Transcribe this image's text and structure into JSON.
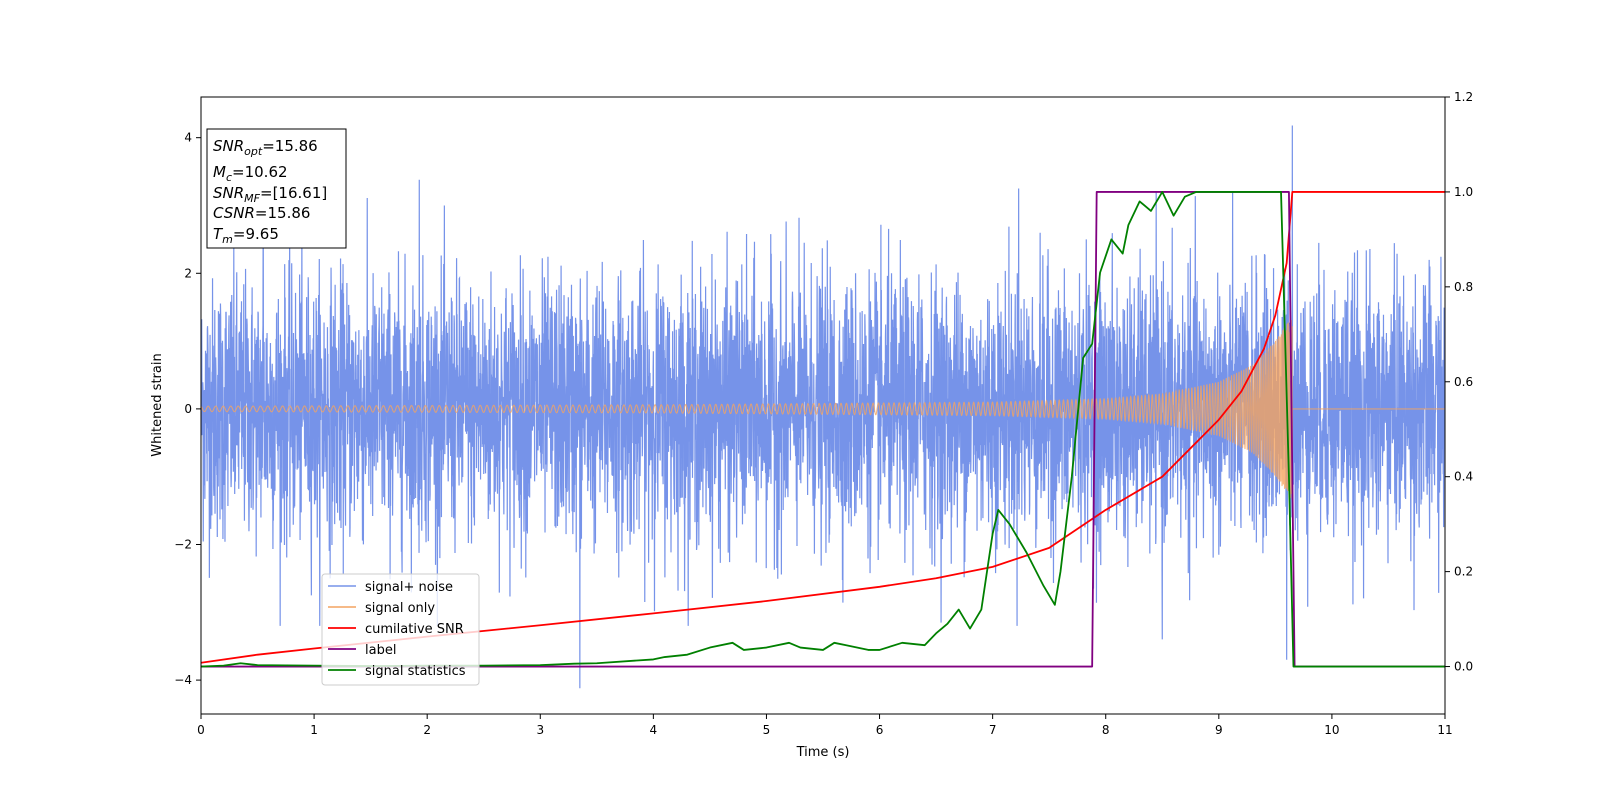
{
  "chart_data": {
    "type": "line",
    "xlabel": "Time (s)",
    "ylabel": "Whitened strain",
    "xlim": [
      0,
      11
    ],
    "ylim_left": [
      -4.5,
      4.6
    ],
    "ylim_right": [
      -0.1,
      1.2
    ],
    "x_ticks": [
      "0",
      "1",
      "2",
      "3",
      "4",
      "5",
      "6",
      "7",
      "8",
      "9",
      "10",
      "11"
    ],
    "y_left_ticks": [
      "4",
      "2",
      "0",
      "−2",
      "−4"
    ],
    "y_left_tick_values": [
      4,
      2,
      0,
      -2,
      -4
    ],
    "y_right_ticks": [
      "1.2",
      "1.0",
      "0.8",
      "0.6",
      "0.4",
      "0.2",
      "0.0"
    ],
    "y_right_tick_values": [
      1.2,
      1.0,
      0.8,
      0.6,
      0.4,
      0.2,
      0.0
    ],
    "grid": false,
    "legend_position": "lower-left",
    "annotation": {
      "lines": [
        {
          "main": "SNR",
          "sub": "opt",
          "rest": "=15.86"
        },
        {
          "main": "M",
          "sub": "c",
          "rest": "=10.62"
        },
        {
          "main": "SNR",
          "sub": "MF",
          "rest": "=[16.61]"
        },
        {
          "main": "CSNR",
          "sub": "",
          "rest": "=15.86"
        },
        {
          "main": "T",
          "sub": "m",
          "rest": "=9.65"
        }
      ]
    },
    "series": [
      {
        "name": "signal+ noise",
        "color": "#4169e1",
        "axis": "left",
        "kind": "noise",
        "std": 0.95,
        "x_range": [
          0,
          11
        ],
        "spike_peaks": [
          [
            0.55,
            3.35
          ],
          [
            1.93,
            3.38
          ],
          [
            3.35,
            -4.12
          ],
          [
            9.65,
            4.18
          ],
          [
            9.6,
            -3.7
          ],
          [
            8.5,
            -3.4
          ],
          [
            7.23,
            3.25
          ]
        ]
      },
      {
        "name": "signal only",
        "color": "#f4a460",
        "axis": "left",
        "kind": "chirp",
        "t_merger": 9.65,
        "amplitude_points": [
          [
            0,
            0.04
          ],
          [
            4,
            0.06
          ],
          [
            7,
            0.1
          ],
          [
            8,
            0.15
          ],
          [
            8.5,
            0.22
          ],
          [
            9,
            0.4
          ],
          [
            9.3,
            0.65
          ],
          [
            9.5,
            1.0
          ],
          [
            9.6,
            1.25
          ],
          [
            9.65,
            1.35
          ]
        ]
      },
      {
        "name": "cumilative SNR",
        "color": "#ff0000",
        "axis": "right",
        "x": [
          0,
          0.5,
          1,
          2,
          3,
          4,
          5,
          6,
          6.5,
          7,
          7.5,
          8,
          8.5,
          9,
          9.2,
          9.4,
          9.5,
          9.6,
          9.65,
          11
        ],
        "y": [
          0.008,
          0.025,
          0.038,
          0.063,
          0.087,
          0.112,
          0.138,
          0.168,
          0.186,
          0.21,
          0.25,
          0.33,
          0.4,
          0.52,
          0.58,
          0.67,
          0.74,
          0.85,
          1.0,
          1.0
        ]
      },
      {
        "name": "label",
        "color": "#800080",
        "axis": "right",
        "x": [
          0,
          7.88,
          7.92,
          9.62,
          9.67,
          11
        ],
        "y": [
          0,
          0,
          1,
          1,
          0,
          0
        ]
      },
      {
        "name": "signal statistics",
        "color": "#008000",
        "axis": "right",
        "x": [
          0,
          0.2,
          0.35,
          0.5,
          1,
          1.5,
          2,
          2.5,
          3,
          3.3,
          3.5,
          4,
          4.1,
          4.3,
          4.5,
          4.7,
          4.8,
          5,
          5.2,
          5.3,
          5.5,
          5.6,
          5.7,
          5.9,
          6,
          6.2,
          6.4,
          6.5,
          6.6,
          6.7,
          6.8,
          6.9,
          7,
          7.05,
          7.15,
          7.3,
          7.45,
          7.55,
          7.6,
          7.7,
          7.8,
          7.88,
          7.95,
          8.05,
          8.15,
          8.2,
          8.3,
          8.4,
          8.5,
          8.6,
          8.7,
          8.8,
          9,
          9.3,
          9.55,
          9.62,
          9.66,
          11
        ],
        "y": [
          0,
          0.002,
          0.007,
          0.003,
          0.002,
          0.001,
          0.002,
          0.002,
          0.003,
          0.006,
          0.007,
          0.015,
          0.02,
          0.025,
          0.04,
          0.05,
          0.035,
          0.04,
          0.05,
          0.04,
          0.035,
          0.05,
          0.045,
          0.035,
          0.035,
          0.05,
          0.045,
          0.07,
          0.09,
          0.12,
          0.08,
          0.12,
          0.28,
          0.33,
          0.3,
          0.24,
          0.17,
          0.13,
          0.2,
          0.4,
          0.65,
          0.68,
          0.83,
          0.9,
          0.87,
          0.93,
          0.98,
          0.96,
          1.0,
          0.95,
          0.99,
          1.0,
          1.0,
          1.0,
          1.0,
          0.4,
          0.0,
          0.0
        ]
      }
    ]
  }
}
